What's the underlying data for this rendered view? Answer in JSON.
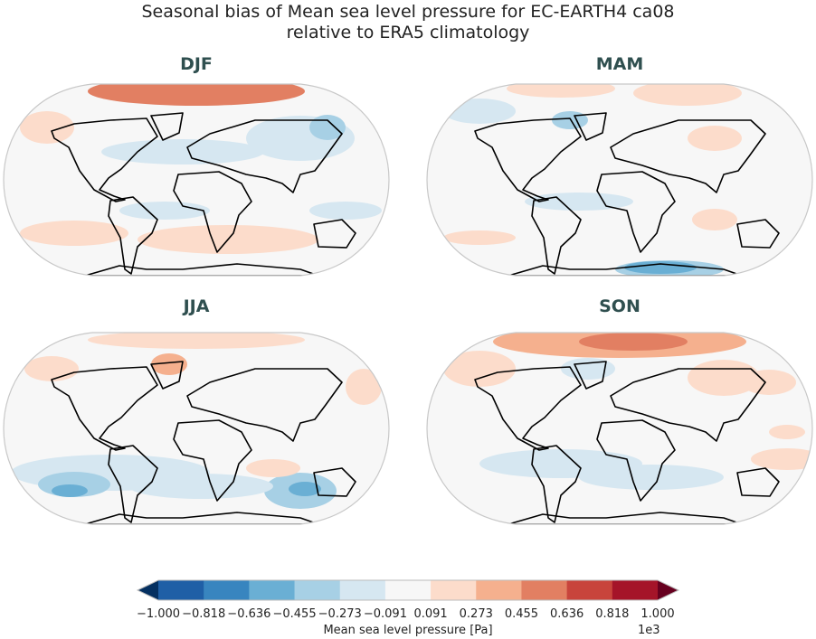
{
  "title_line1": "Seasonal bias of Mean sea level pressure for EC-EARTH4 ca08",
  "title_line2": "relative to ERA5 climatology",
  "panels": [
    {
      "label": "DJF"
    },
    {
      "label": "MAM"
    },
    {
      "label": "JJA"
    },
    {
      "label": "SON"
    }
  ],
  "colorbar": {
    "label": "Mean sea level pressure [Pa]",
    "exponent": "1e3",
    "ticks": [
      "−1.000",
      "−0.818",
      "−0.636",
      "−0.455",
      "−0.273",
      "−0.091",
      "0.091",
      "0.273",
      "0.455",
      "0.636",
      "0.818",
      "1.000"
    ],
    "colors": [
      "#1f5fa6",
      "#3885bf",
      "#6aafd4",
      "#a7d0e5",
      "#d6e7f1",
      "#f7f7f7",
      "#fcdccb",
      "#f5b08e",
      "#e27f62",
      "#c8443c",
      "#a51429"
    ],
    "under_color": "#053061",
    "over_color": "#67001f",
    "extend": "both"
  },
  "chart_data": {
    "type": "heatmap",
    "projection": "Robinson",
    "panels": [
      "DJF",
      "MAM",
      "JJA",
      "SON"
    ],
    "levels": [
      -1000,
      -818,
      -636,
      -455,
      -273,
      -91,
      91,
      273,
      455,
      636,
      818,
      1000
    ],
    "units": "Pa",
    "colormap": "RdBu_r"
  }
}
